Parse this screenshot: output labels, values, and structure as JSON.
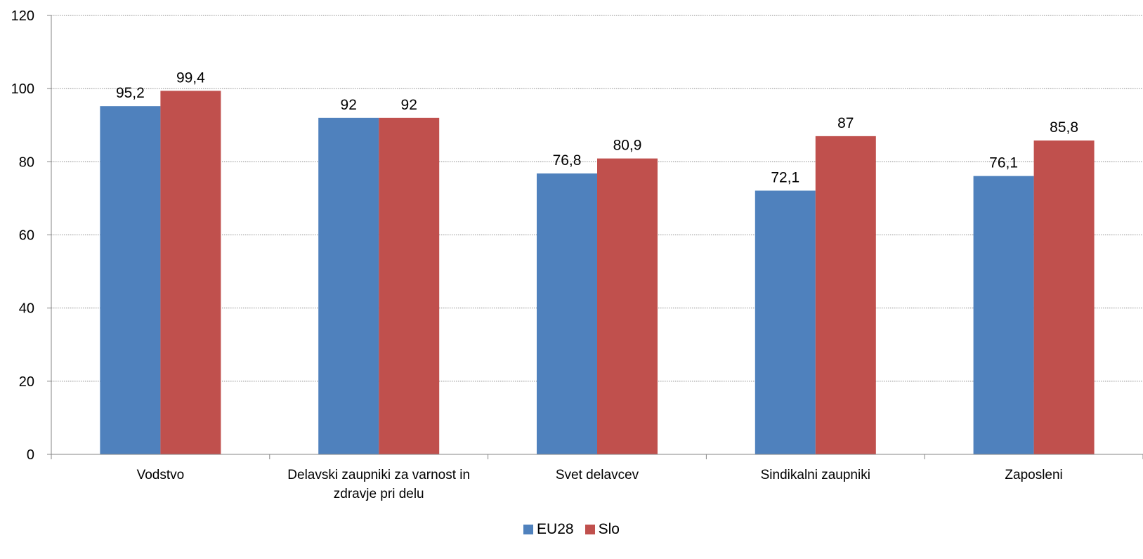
{
  "chart_data": {
    "type": "bar",
    "categories": [
      [
        "Vodstvo"
      ],
      [
        "Delavski zaupniki za varnost in",
        "zdravje pri delu"
      ],
      [
        "Svet delavcev"
      ],
      [
        "Sindikalni zaupniki"
      ],
      [
        "Zaposleni"
      ]
    ],
    "series": [
      {
        "name": "EU28",
        "color": "#4f81bd",
        "values": [
          95.2,
          92,
          76.8,
          72.1,
          76.1
        ],
        "labels": [
          "95,2",
          "92",
          "76,8",
          "72,1",
          "76,1"
        ]
      },
      {
        "name": "Slo",
        "color": "#c0504d",
        "values": [
          99.4,
          92,
          80.9,
          87,
          85.8
        ],
        "labels": [
          "99,4",
          "92",
          "80,9",
          "87",
          "85,8"
        ]
      }
    ],
    "y_ticks": [
      "0",
      "20",
      "40",
      "60",
      "80",
      "100",
      "120"
    ],
    "ylim": [
      0,
      120
    ],
    "title": "",
    "xlabel": "",
    "ylabel": "",
    "grid": "horizontal dotted",
    "legend_position": "bottom"
  }
}
